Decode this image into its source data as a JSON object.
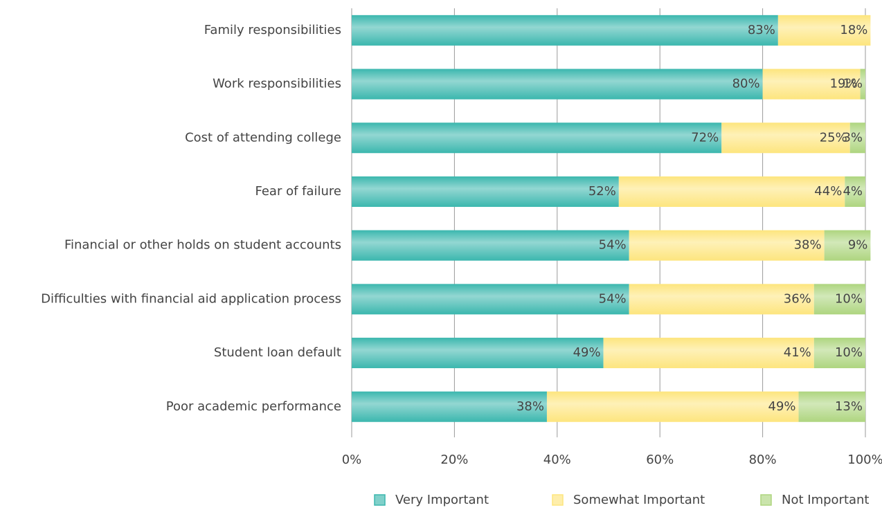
{
  "chart_data": {
    "type": "stacked_bar_horizontal",
    "categories": [
      "Family responsibilities",
      "Work responsibilities",
      "Cost of attending college",
      "Fear of failure",
      "Financial or other holds on student accounts",
      "Difficulties with financial aid application process",
      "Student loan default",
      "Poor academic performance"
    ],
    "series": [
      {
        "name": "Very Important",
        "color": "#3bb7ae",
        "values": [
          83,
          80,
          72,
          52,
          54,
          54,
          49,
          38
        ],
        "value_labels": [
          "83%",
          "80%",
          "72%",
          "52%",
          "54%",
          "54%",
          "49%",
          "38%"
        ]
      },
      {
        "name": "Somewhat Important",
        "color": "#fde57e",
        "values": [
          18,
          19,
          25,
          44,
          38,
          36,
          41,
          49
        ],
        "value_labels": [
          "18%",
          "19%",
          "25%",
          "44%",
          "38%",
          "36%",
          "41%",
          "49%"
        ]
      },
      {
        "name": "Not Important",
        "color": "#aed57f",
        "values": [
          null,
          1,
          3,
          4,
          9,
          10,
          10,
          13
        ],
        "value_labels": [
          null,
          "1%",
          "3%",
          "4%",
          "9%",
          "10%",
          "10%",
          "13%"
        ]
      }
    ],
    "xlim": [
      0,
      100
    ],
    "xticks": [
      {
        "value": 0,
        "label": "0%"
      },
      {
        "value": 20,
        "label": "20%"
      },
      {
        "value": 40,
        "label": "40%"
      },
      {
        "value": 60,
        "label": "60%"
      },
      {
        "value": 80,
        "label": "80%"
      },
      {
        "value": 100,
        "label": "100%"
      }
    ],
    "grid": true,
    "legend": "bottom"
  }
}
